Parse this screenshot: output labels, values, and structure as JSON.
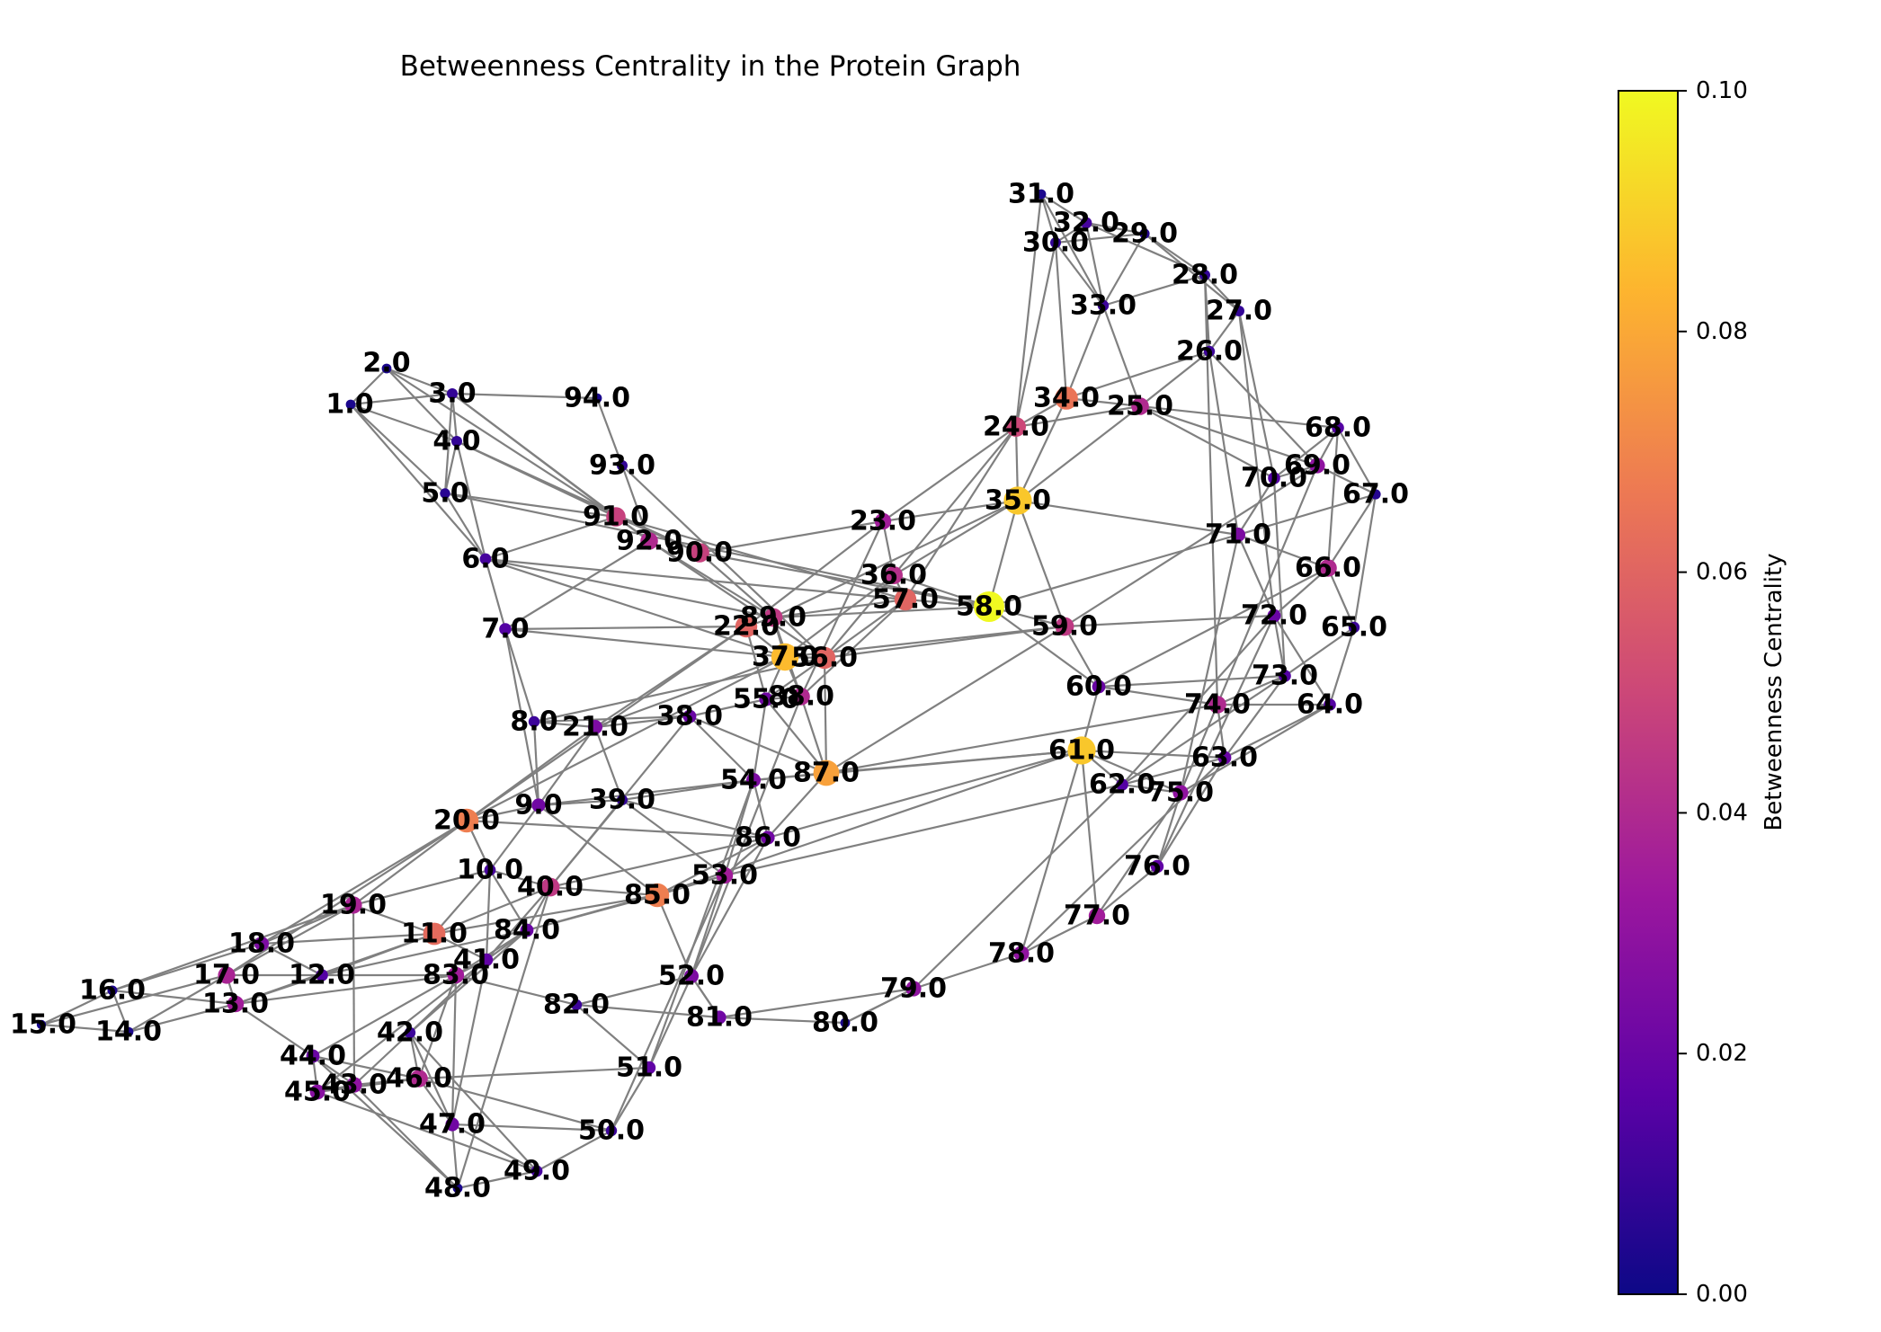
{
  "title": "Betweenness Centrality in the Protein Graph",
  "colorbar": {
    "label": "Betweenness Centrality",
    "min": 0.0,
    "max": 0.1,
    "colormap": "plasma",
    "ticks": [
      {
        "value": 0.0,
        "label": "0.00"
      },
      {
        "value": 0.02,
        "label": "0.02"
      },
      {
        "value": 0.04,
        "label": "0.04"
      },
      {
        "value": 0.06,
        "label": "0.06"
      },
      {
        "value": 0.08,
        "label": "0.08"
      },
      {
        "value": 0.1,
        "label": "0.10"
      }
    ]
  },
  "colors": {
    "edge": "#808080",
    "plasma_stops": [
      "#0d0887",
      "#5c01a6",
      "#9c179e",
      "#cc4778",
      "#ed7953",
      "#fdb42f",
      "#f0f921"
    ]
  },
  "nodes": [
    {
      "id": 1,
      "label": "1.0",
      "c": 0.003
    },
    {
      "id": 2,
      "label": "2.0",
      "c": 0.003
    },
    {
      "id": 3,
      "label": "3.0",
      "c": 0.008
    },
    {
      "id": 4,
      "label": "4.0",
      "c": 0.008
    },
    {
      "id": 5,
      "label": "5.0",
      "c": 0.006
    },
    {
      "id": 6,
      "label": "6.0",
      "c": 0.012
    },
    {
      "id": 7,
      "label": "7.0",
      "c": 0.015
    },
    {
      "id": 8,
      "label": "8.0",
      "c": 0.01
    },
    {
      "id": 9,
      "label": "9.0",
      "c": 0.022
    },
    {
      "id": 10,
      "label": "10.0",
      "c": 0.012
    },
    {
      "id": 11,
      "label": "11.0",
      "c": 0.062
    },
    {
      "id": 12,
      "label": "12.0",
      "c": 0.015
    },
    {
      "id": 13,
      "label": "13.0",
      "c": 0.035
    },
    {
      "id": 14,
      "label": "14.0",
      "c": 0.003
    },
    {
      "id": 15,
      "label": "15.0",
      "c": 0.002
    },
    {
      "id": 16,
      "label": "16.0",
      "c": 0.004
    },
    {
      "id": 17,
      "label": "17.0",
      "c": 0.038
    },
    {
      "id": 18,
      "label": "18.0",
      "c": 0.025
    },
    {
      "id": 19,
      "label": "19.0",
      "c": 0.038
    },
    {
      "id": 20,
      "label": "20.0",
      "c": 0.068
    },
    {
      "id": 21,
      "label": "21.0",
      "c": 0.025
    },
    {
      "id": 22,
      "label": "22.0",
      "c": 0.06
    },
    {
      "id": 23,
      "label": "23.0",
      "c": 0.035
    },
    {
      "id": 24,
      "label": "24.0",
      "c": 0.05
    },
    {
      "id": 25,
      "label": "25.0",
      "c": 0.04
    },
    {
      "id": 26,
      "label": "26.0",
      "c": 0.01
    },
    {
      "id": 27,
      "label": "27.0",
      "c": 0.008
    },
    {
      "id": 28,
      "label": "28.0",
      "c": 0.008
    },
    {
      "id": 29,
      "label": "29.0",
      "c": 0.005
    },
    {
      "id": 30,
      "label": "30.0",
      "c": 0.008
    },
    {
      "id": 31,
      "label": "31.0",
      "c": 0.003
    },
    {
      "id": 32,
      "label": "32.0",
      "c": 0.012
    },
    {
      "id": 33,
      "label": "33.0",
      "c": 0.01
    },
    {
      "id": 34,
      "label": "34.0",
      "c": 0.065
    },
    {
      "id": 35,
      "label": "35.0",
      "c": 0.088
    },
    {
      "id": 36,
      "label": "36.0",
      "c": 0.042
    },
    {
      "id": 37,
      "label": "37.0",
      "c": 0.085
    },
    {
      "id": 38,
      "label": "38.0",
      "c": 0.02
    },
    {
      "id": 39,
      "label": "39.0",
      "c": 0.008
    },
    {
      "id": 40,
      "label": "40.0",
      "c": 0.045
    },
    {
      "id": 41,
      "label": "41.0",
      "c": 0.018
    },
    {
      "id": 42,
      "label": "42.0",
      "c": 0.01
    },
    {
      "id": 43,
      "label": "43.0",
      "c": 0.03
    },
    {
      "id": 44,
      "label": "44.0",
      "c": 0.02
    },
    {
      "id": 45,
      "label": "45.0",
      "c": 0.028
    },
    {
      "id": 46,
      "label": "46.0",
      "c": 0.04
    },
    {
      "id": 47,
      "label": "47.0",
      "c": 0.022
    },
    {
      "id": 48,
      "label": "48.0",
      "c": 0.003
    },
    {
      "id": 49,
      "label": "49.0",
      "c": 0.012
    },
    {
      "id": 50,
      "label": "50.0",
      "c": 0.01
    },
    {
      "id": 51,
      "label": "51.0",
      "c": 0.018
    },
    {
      "id": 52,
      "label": "52.0",
      "c": 0.025
    },
    {
      "id": 53,
      "label": "53.0",
      "c": 0.035
    },
    {
      "id": 54,
      "label": "54.0",
      "c": 0.025
    },
    {
      "id": 55,
      "label": "55.0",
      "c": 0.022
    },
    {
      "id": 56,
      "label": "56.0",
      "c": 0.06
    },
    {
      "id": 57,
      "label": "57.0",
      "c": 0.06
    },
    {
      "id": 58,
      "label": "58.0",
      "c": 0.1
    },
    {
      "id": 59,
      "label": "59.0",
      "c": 0.045
    },
    {
      "id": 60,
      "label": "60.0",
      "c": 0.02
    },
    {
      "id": 61,
      "label": "61.0",
      "c": 0.088
    },
    {
      "id": 62,
      "label": "62.0",
      "c": 0.015
    },
    {
      "id": 63,
      "label": "63.0",
      "c": 0.02
    },
    {
      "id": 64,
      "label": "64.0",
      "c": 0.015
    },
    {
      "id": 65,
      "label": "65.0",
      "c": 0.01
    },
    {
      "id": 66,
      "label": "66.0",
      "c": 0.04
    },
    {
      "id": 67,
      "label": "67.0",
      "c": 0.005
    },
    {
      "id": 68,
      "label": "68.0",
      "c": 0.015
    },
    {
      "id": 69,
      "label": "69.0",
      "c": 0.03
    },
    {
      "id": 70,
      "label": "70.0",
      "c": 0.015
    },
    {
      "id": 71,
      "label": "71.0",
      "c": 0.025
    },
    {
      "id": 72,
      "label": "72.0",
      "c": 0.02
    },
    {
      "id": 73,
      "label": "73.0",
      "c": 0.015
    },
    {
      "id": 74,
      "label": "74.0",
      "c": 0.04
    },
    {
      "id": 75,
      "label": "75.0",
      "c": 0.03
    },
    {
      "id": 76,
      "label": "76.0",
      "c": 0.018
    },
    {
      "id": 77,
      "label": "77.0",
      "c": 0.035
    },
    {
      "id": 78,
      "label": "78.0",
      "c": 0.03
    },
    {
      "id": 79,
      "label": "79.0",
      "c": 0.03
    },
    {
      "id": 80,
      "label": "80.0",
      "c": 0.003
    },
    {
      "id": 81,
      "label": "81.0",
      "c": 0.022
    },
    {
      "id": 82,
      "label": "82.0",
      "c": 0.01
    },
    {
      "id": 83,
      "label": "83.0",
      "c": 0.035
    },
    {
      "id": 84,
      "label": "84.0",
      "c": 0.02
    },
    {
      "id": 85,
      "label": "85.0",
      "c": 0.068
    },
    {
      "id": 86,
      "label": "86.0",
      "c": 0.022
    },
    {
      "id": 87,
      "label": "87.0",
      "c": 0.078
    },
    {
      "id": 88,
      "label": "88.0",
      "c": 0.04
    },
    {
      "id": 89,
      "label": "89.0",
      "c": 0.045
    },
    {
      "id": 90,
      "label": "90.0",
      "c": 0.048
    },
    {
      "id": 91,
      "label": "91.0",
      "c": 0.048
    },
    {
      "id": 92,
      "label": "92.0",
      "c": 0.04
    },
    {
      "id": 93,
      "label": "93.0",
      "c": 0.008
    },
    {
      "id": 94,
      "label": "94.0",
      "c": 0.003
    }
  ],
  "edges": [
    [
      1,
      2
    ],
    [
      1,
      3
    ],
    [
      1,
      4
    ],
    [
      1,
      5
    ],
    [
      1,
      6
    ],
    [
      2,
      3
    ],
    [
      2,
      4
    ],
    [
      2,
      91
    ],
    [
      3,
      4
    ],
    [
      3,
      5
    ],
    [
      3,
      94
    ],
    [
      3,
      91
    ],
    [
      3,
      92
    ],
    [
      4,
      5
    ],
    [
      4,
      91
    ],
    [
      4,
      90
    ],
    [
      4,
      6
    ],
    [
      5,
      6
    ],
    [
      5,
      91
    ],
    [
      5,
      58
    ],
    [
      6,
      7
    ],
    [
      6,
      91
    ],
    [
      6,
      89
    ],
    [
      6,
      37
    ],
    [
      7,
      8
    ],
    [
      7,
      22
    ],
    [
      7,
      92
    ],
    [
      7,
      9
    ],
    [
      8,
      9
    ],
    [
      8,
      21
    ],
    [
      8,
      56
    ],
    [
      9,
      10
    ],
    [
      9,
      20
    ],
    [
      9,
      21
    ],
    [
      9,
      54
    ],
    [
      10,
      11
    ],
    [
      10,
      40
    ],
    [
      10,
      20
    ],
    [
      11,
      19
    ],
    [
      11,
      40
    ],
    [
      11,
      41
    ],
    [
      11,
      12
    ],
    [
      12,
      13
    ],
    [
      12,
      18
    ],
    [
      12,
      83
    ],
    [
      13,
      14
    ],
    [
      13,
      17
    ],
    [
      13,
      44
    ],
    [
      14,
      15
    ],
    [
      14,
      16
    ],
    [
      14,
      17
    ],
    [
      15,
      16
    ],
    [
      15,
      17
    ],
    [
      16,
      18
    ],
    [
      16,
      19
    ],
    [
      17,
      19
    ],
    [
      17,
      20
    ],
    [
      18,
      19
    ],
    [
      18,
      20
    ],
    [
      19,
      20
    ],
    [
      19,
      43
    ],
    [
      20,
      21
    ],
    [
      20,
      37
    ],
    [
      20,
      22
    ],
    [
      21,
      37
    ],
    [
      21,
      38
    ],
    [
      21,
      22
    ],
    [
      22,
      23
    ],
    [
      22,
      89
    ],
    [
      22,
      37
    ],
    [
      23,
      24
    ],
    [
      23,
      35
    ],
    [
      23,
      36
    ],
    [
      24,
      34
    ],
    [
      24,
      35
    ],
    [
      24,
      30
    ],
    [
      24,
      25
    ],
    [
      25,
      26
    ],
    [
      25,
      33
    ],
    [
      25,
      35
    ],
    [
      25,
      70
    ],
    [
      25,
      69
    ],
    [
      26,
      27
    ],
    [
      26,
      28
    ],
    [
      26,
      69
    ],
    [
      26,
      34
    ],
    [
      27,
      28
    ],
    [
      27,
      29
    ],
    [
      27,
      70
    ],
    [
      28,
      29
    ],
    [
      28,
      32
    ],
    [
      28,
      33
    ],
    [
      29,
      30
    ],
    [
      29,
      32
    ],
    [
      30,
      31
    ],
    [
      30,
      32
    ],
    [
      30,
      34
    ],
    [
      31,
      32
    ],
    [
      31,
      24
    ],
    [
      32,
      33
    ],
    [
      33,
      34
    ],
    [
      34,
      35
    ],
    [
      34,
      68
    ],
    [
      35,
      58
    ],
    [
      35,
      36
    ],
    [
      35,
      71
    ],
    [
      36,
      37
    ],
    [
      36,
      57
    ],
    [
      36,
      56
    ],
    [
      37,
      55
    ],
    [
      37,
      56
    ],
    [
      37,
      88
    ],
    [
      37,
      89
    ],
    [
      38,
      55
    ],
    [
      38,
      54
    ],
    [
      38,
      40
    ],
    [
      39,
      40
    ],
    [
      39,
      53
    ],
    [
      39,
      54
    ],
    [
      40,
      41
    ],
    [
      40,
      84
    ],
    [
      40,
      85
    ],
    [
      41,
      83
    ],
    [
      41,
      84
    ],
    [
      41,
      42
    ],
    [
      42,
      46
    ],
    [
      42,
      47
    ],
    [
      43,
      44
    ],
    [
      43,
      45
    ],
    [
      43,
      46
    ],
    [
      44,
      45
    ],
    [
      44,
      48
    ],
    [
      45,
      46
    ],
    [
      45,
      49
    ],
    [
      46,
      47
    ],
    [
      46,
      50
    ],
    [
      47,
      48
    ],
    [
      47,
      49
    ],
    [
      48,
      49
    ],
    [
      49,
      50
    ],
    [
      50,
      51
    ],
    [
      51,
      52
    ],
    [
      51,
      46
    ],
    [
      52,
      53
    ],
    [
      52,
      81
    ],
    [
      53,
      54
    ],
    [
      53,
      85
    ],
    [
      53,
      86
    ],
    [
      54,
      55
    ],
    [
      54,
      87
    ],
    [
      55,
      56
    ],
    [
      55,
      88
    ],
    [
      56,
      57
    ],
    [
      56,
      87
    ],
    [
      57,
      58
    ],
    [
      57,
      89
    ],
    [
      58,
      59
    ],
    [
      58,
      60
    ],
    [
      58,
      36
    ],
    [
      59,
      60
    ],
    [
      59,
      72
    ],
    [
      60,
      61
    ],
    [
      60,
      73
    ],
    [
      61,
      62
    ],
    [
      61,
      63
    ],
    [
      61,
      87
    ],
    [
      61,
      77
    ],
    [
      62,
      63
    ],
    [
      62,
      75
    ],
    [
      63,
      64
    ],
    [
      63,
      73
    ],
    [
      64,
      65
    ],
    [
      64,
      72
    ],
    [
      65,
      66
    ],
    [
      65,
      67
    ],
    [
      66,
      67
    ],
    [
      66,
      71
    ],
    [
      67,
      68
    ],
    [
      67,
      69
    ],
    [
      68,
      69
    ],
    [
      68,
      70
    ],
    [
      69,
      70
    ],
    [
      70,
      71
    ],
    [
      71,
      72
    ],
    [
      72,
      73
    ],
    [
      73,
      74
    ],
    [
      74,
      75
    ],
    [
      74,
      63
    ],
    [
      75,
      76
    ],
    [
      76,
      77
    ],
    [
      77,
      78
    ],
    [
      78,
      79
    ],
    [
      79,
      80
    ],
    [
      80,
      81
    ],
    [
      81,
      82
    ],
    [
      81,
      52
    ],
    [
      82,
      83
    ],
    [
      83,
      84
    ],
    [
      84,
      85
    ],
    [
      85,
      86
    ],
    [
      86,
      87
    ],
    [
      87,
      88
    ],
    [
      88,
      89
    ],
    [
      89,
      90
    ],
    [
      90,
      91
    ],
    [
      91,
      92
    ],
    [
      92,
      93
    ],
    [
      93,
      94
    ],
    [
      90,
      58
    ],
    [
      92,
      56
    ],
    [
      91,
      57
    ],
    [
      86,
      61
    ],
    [
      85,
      61
    ],
    [
      87,
      74
    ],
    [
      56,
      59
    ],
    [
      37,
      59
    ],
    [
      53,
      62
    ],
    [
      40,
      86
    ],
    [
      20,
      86
    ],
    [
      11,
      85
    ],
    [
      13,
      83
    ],
    [
      44,
      83
    ],
    [
      45,
      41
    ],
    [
      12,
      84
    ],
    [
      48,
      40
    ],
    [
      47,
      83
    ],
    [
      50,
      53
    ],
    [
      51,
      54
    ],
    [
      52,
      88
    ],
    [
      78,
      63
    ],
    [
      79,
      62
    ],
    [
      76,
      63
    ],
    [
      75,
      64
    ],
    [
      62,
      72
    ],
    [
      60,
      66
    ],
    [
      59,
      69
    ],
    [
      58,
      71
    ],
    [
      57,
      24
    ],
    [
      88,
      23
    ],
    [
      89,
      35
    ],
    [
      90,
      23
    ],
    [
      92,
      89
    ],
    [
      93,
      56
    ],
    [
      6,
      57
    ],
    [
      7,
      37
    ],
    [
      8,
      38
    ],
    [
      9,
      39
    ],
    [
      10,
      41
    ],
    [
      11,
      13
    ],
    [
      12,
      17
    ],
    [
      16,
      13
    ],
    [
      18,
      11
    ],
    [
      19,
      10
    ],
    [
      21,
      39
    ],
    [
      22,
      55
    ],
    [
      24,
      36
    ],
    [
      35,
      59
    ],
    [
      26,
      71
    ],
    [
      27,
      72
    ],
    [
      28,
      74
    ],
    [
      29,
      33
    ],
    [
      30,
      33
    ],
    [
      31,
      33
    ],
    [
      65,
      73
    ],
    [
      64,
      74
    ],
    [
      66,
      72
    ],
    [
      67,
      71
    ],
    [
      68,
      66
    ],
    [
      70,
      73
    ],
    [
      69,
      74
    ],
    [
      71,
      75
    ],
    [
      72,
      76
    ],
    [
      73,
      62
    ],
    [
      74,
      60
    ],
    [
      75,
      61
    ],
    [
      77,
      75
    ],
    [
      78,
      61
    ],
    [
      80,
      79
    ],
    [
      81,
      79
    ],
    [
      82,
      52
    ],
    [
      83,
      46
    ],
    [
      84,
      53
    ],
    [
      85,
      52
    ],
    [
      86,
      54
    ],
    [
      87,
      59
    ],
    [
      88,
      57
    ],
    [
      89,
      58
    ],
    [
      55,
      87
    ],
    [
      54,
      61
    ],
    [
      38,
      87
    ],
    [
      39,
      86
    ],
    [
      9,
      85
    ],
    [
      10,
      84
    ],
    [
      42,
      43
    ],
    [
      42,
      84
    ],
    [
      46,
      44
    ],
    [
      47,
      41
    ],
    [
      48,
      43
    ],
    [
      49,
      42
    ],
    [
      50,
      47
    ],
    [
      51,
      82
    ],
    [
      52,
      86
    ]
  ]
}
